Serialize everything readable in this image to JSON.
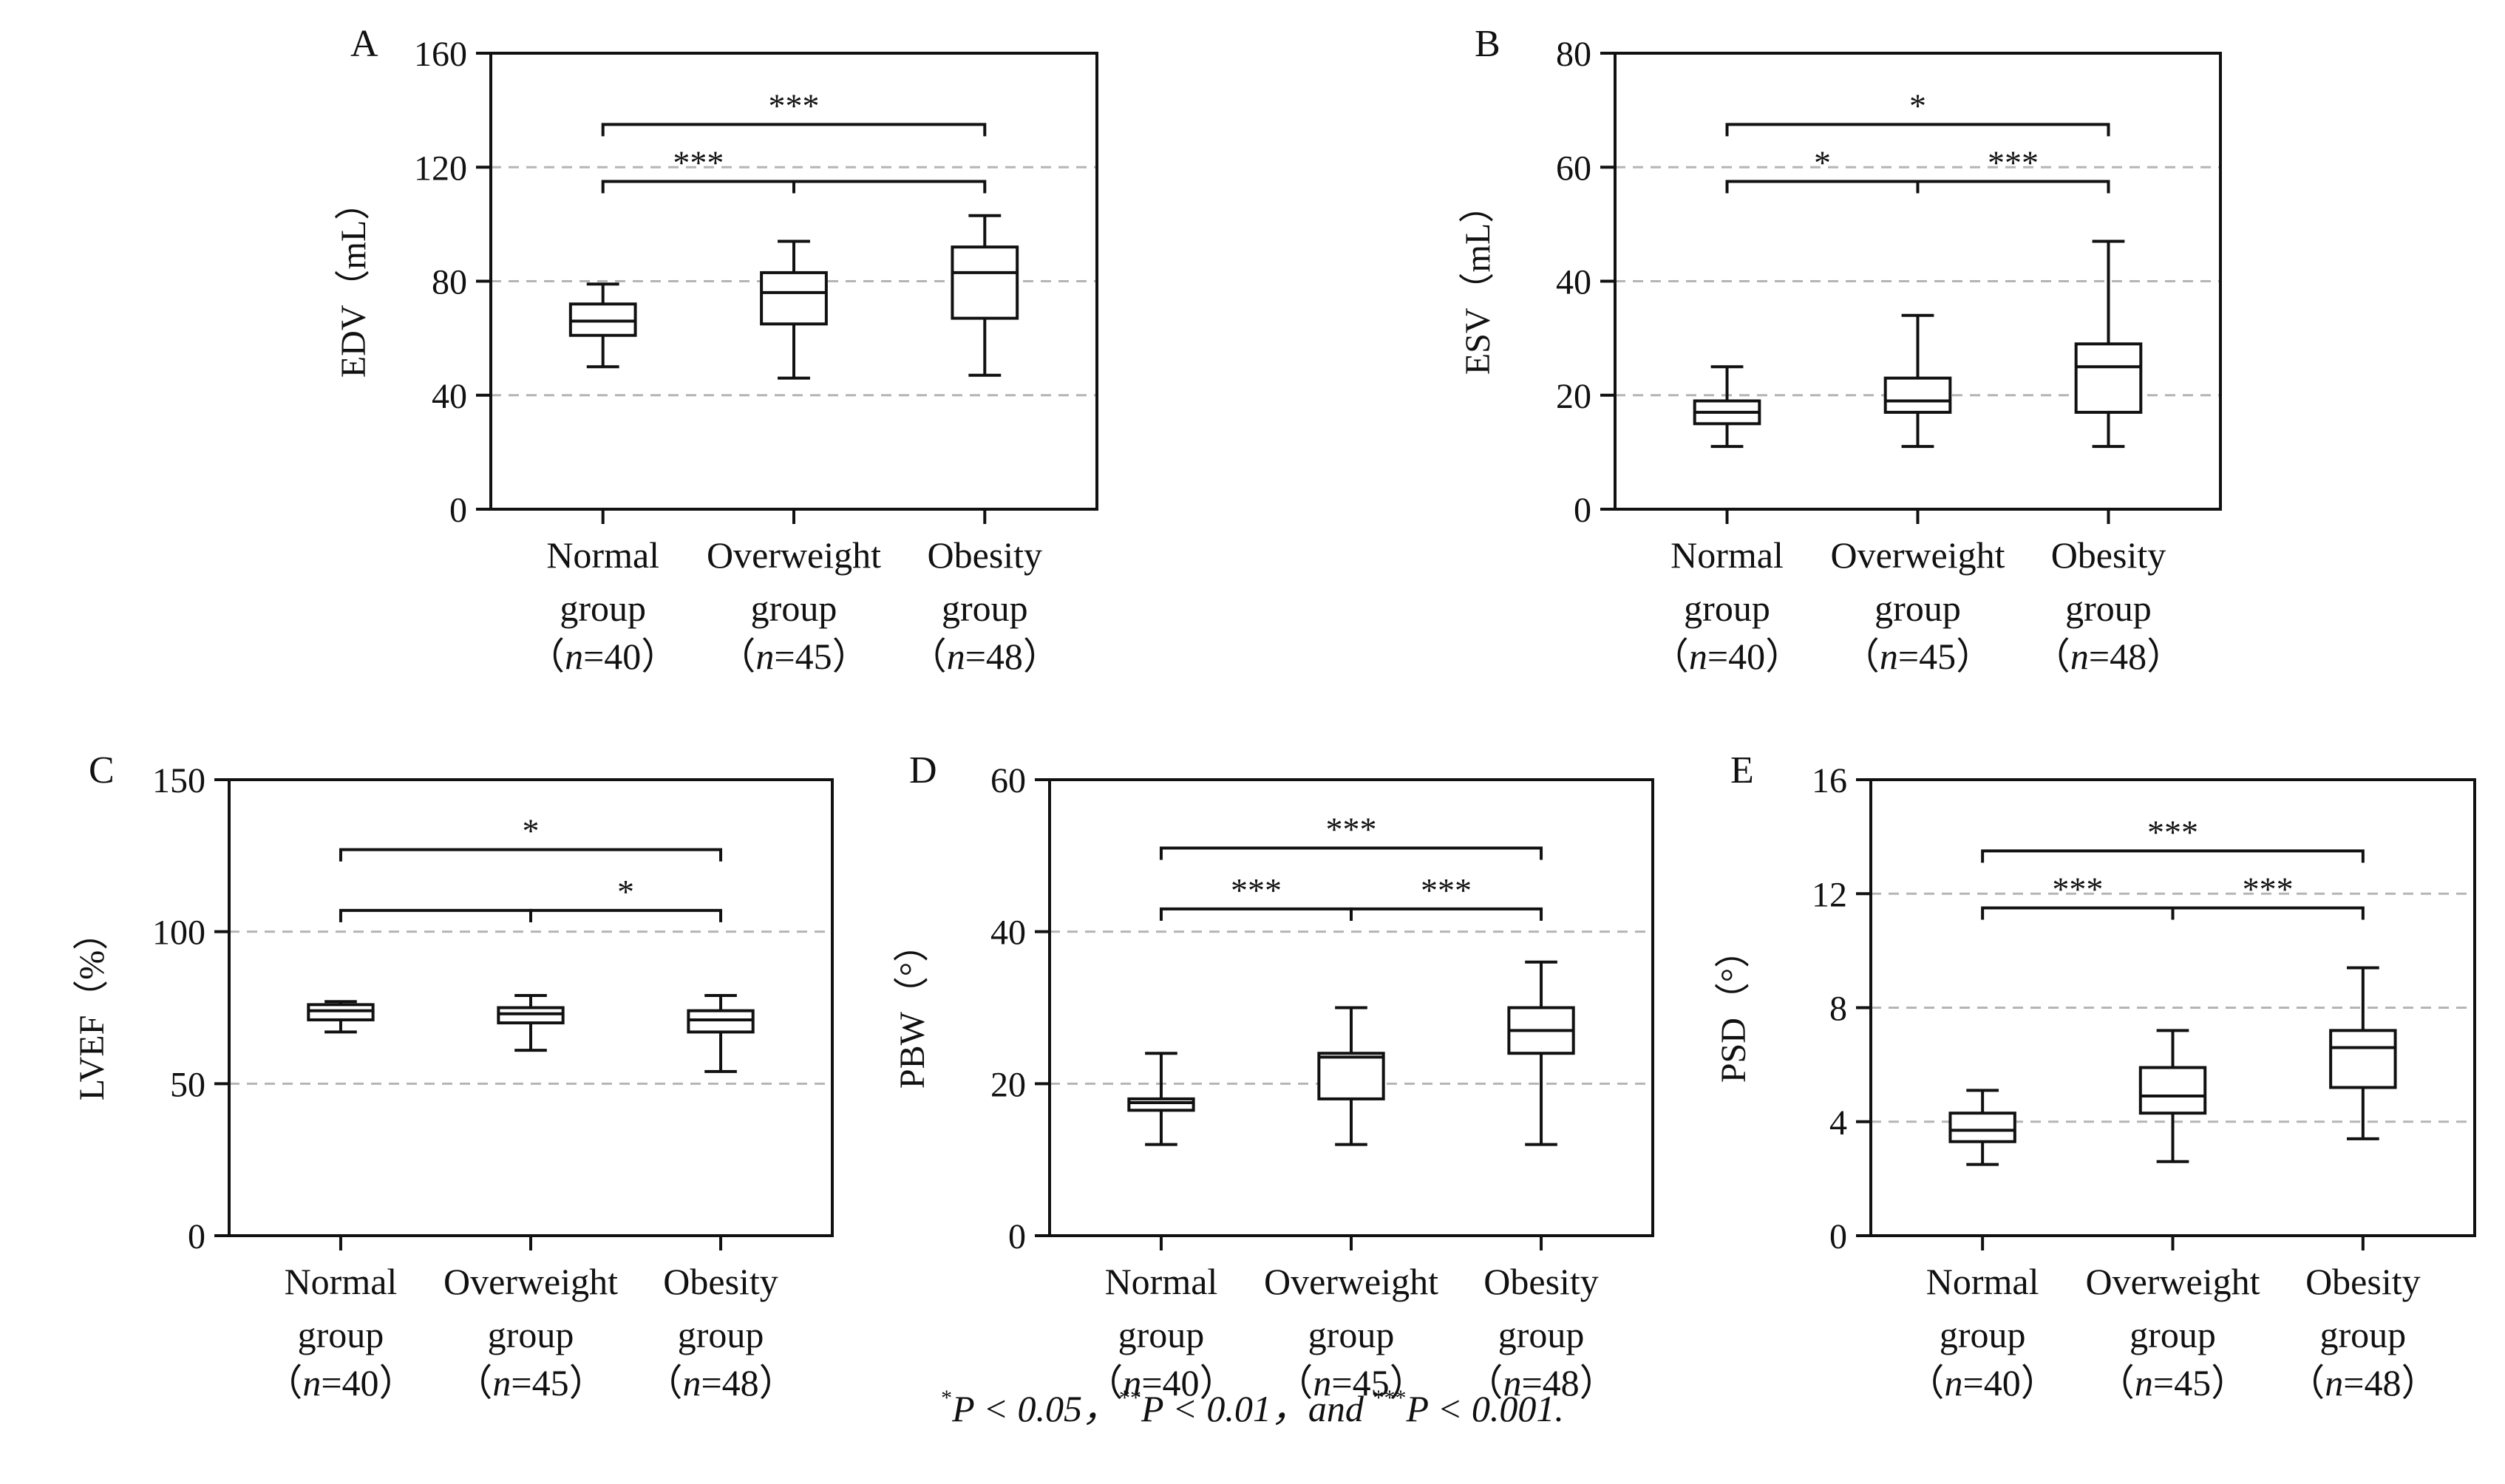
{
  "chart_data": [
    {
      "panel": "A",
      "type": "box",
      "ylabel": "EDV（mL）",
      "ylim": [
        0,
        160
      ],
      "yticks": [
        0,
        40,
        80,
        120,
        160
      ],
      "grid": [
        40,
        80,
        120
      ],
      "groups": [
        {
          "name": "Normal",
          "sub": "group",
          "n": "（n=40）",
          "n_value": "n=40",
          "min": 50,
          "q1": 61,
          "median": 66,
          "q3": 72,
          "max": 79
        },
        {
          "name": "Overweight",
          "sub": "group",
          "n": "（n=45）",
          "n_value": "n=45",
          "min": 46,
          "q1": 65,
          "median": 76,
          "q3": 83,
          "max": 94
        },
        {
          "name": "Obesity",
          "sub": "group",
          "n": "（n=48）",
          "n_value": "n=48",
          "min": 47,
          "q1": 67,
          "median": 83,
          "q3": 92,
          "max": 103
        }
      ],
      "significance": [
        {
          "from": 0,
          "to": 2,
          "level": 135,
          "label": "***",
          "label_at": "middle"
        },
        {
          "from": 0,
          "to": 1,
          "level": 115,
          "label": "***",
          "label_at": "middle"
        },
        {
          "from": 1,
          "to": 2,
          "level": 115,
          "label": "",
          "label_at": "middle"
        }
      ]
    },
    {
      "panel": "B",
      "type": "box",
      "ylabel": "ESV（mL）",
      "ylim": [
        0,
        80
      ],
      "yticks": [
        0,
        20,
        40,
        60,
        80
      ],
      "grid": [
        20,
        40,
        60
      ],
      "groups": [
        {
          "name": "Normal",
          "sub": "group",
          "n": "（n=40）",
          "n_value": "n=40",
          "min": 11,
          "q1": 15,
          "median": 17,
          "q3": 19,
          "max": 25
        },
        {
          "name": "Overweight",
          "sub": "group",
          "n": "（n=45）",
          "n_value": "n=45",
          "min": 11,
          "q1": 17,
          "median": 19,
          "q3": 23,
          "max": 34
        },
        {
          "name": "Obesity",
          "sub": "group",
          "n": "（n=48）",
          "n_value": "n=48",
          "min": 11,
          "q1": 17,
          "median": 25,
          "q3": 29,
          "max": 47
        }
      ],
      "significance": [
        {
          "from": 0,
          "to": 2,
          "level": 67.5,
          "label": "*",
          "label_at": "middle"
        },
        {
          "from": 0,
          "to": 1,
          "level": 57.5,
          "label": "*",
          "label_at": "middle"
        },
        {
          "from": 1,
          "to": 2,
          "level": 57.5,
          "label": "***",
          "label_at": "middle"
        }
      ]
    },
    {
      "panel": "C",
      "type": "box",
      "ylabel": "LVEF（%）",
      "ylim": [
        0,
        150
      ],
      "yticks": [
        0,
        50,
        100,
        150
      ],
      "grid": [
        50,
        100
      ],
      "groups": [
        {
          "name": "Normal",
          "sub": "group",
          "n": "（n=40）",
          "n_value": "n=40",
          "min": 67,
          "q1": 71,
          "median": 74,
          "q3": 76,
          "max": 77
        },
        {
          "name": "Overweight",
          "sub": "group",
          "n": "（n=45）",
          "n_value": "n=45",
          "min": 61,
          "q1": 70,
          "median": 73,
          "q3": 75,
          "max": 79
        },
        {
          "name": "Obesity",
          "sub": "group",
          "n": "（n=48）",
          "n_value": "n=48",
          "min": 54,
          "q1": 67,
          "median": 71,
          "q3": 74,
          "max": 79
        }
      ],
      "significance": [
        {
          "from": 0,
          "to": 2,
          "level": 127,
          "label": "*",
          "label_at": "middle"
        },
        {
          "from": 0,
          "to": 1,
          "level": 107,
          "label": "",
          "label_at": "middle"
        },
        {
          "from": 1,
          "to": 2,
          "level": 107,
          "label": "*",
          "label_at": "middle"
        }
      ]
    },
    {
      "panel": "D",
      "type": "box",
      "ylabel": "PBW（°）",
      "ylim": [
        0,
        60
      ],
      "yticks": [
        0,
        20,
        40,
        60
      ],
      "grid": [
        20,
        40
      ],
      "groups": [
        {
          "name": "Normal",
          "sub": "group",
          "n": "（n=40）",
          "n_value": "n=40",
          "min": 12,
          "q1": 16.5,
          "median": 17.5,
          "q3": 18,
          "max": 24
        },
        {
          "name": "Overweight",
          "sub": "group",
          "n": "（n=45）",
          "n_value": "n=45",
          "min": 12,
          "q1": 18,
          "median": 23.5,
          "q3": 24,
          "max": 30
        },
        {
          "name": "Obesity",
          "sub": "group",
          "n": "（n=48）",
          "n_value": "n=48",
          "min": 12,
          "q1": 24,
          "median": 27,
          "q3": 30,
          "max": 36
        }
      ],
      "significance": [
        {
          "from": 0,
          "to": 2,
          "level": 51,
          "label": "***",
          "label_at": "middle"
        },
        {
          "from": 0,
          "to": 1,
          "level": 43,
          "label": "***",
          "label_at": "middle"
        },
        {
          "from": 1,
          "to": 2,
          "level": 43,
          "label": "***",
          "label_at": "middle"
        }
      ]
    },
    {
      "panel": "E",
      "type": "box",
      "ylabel": "PSD（°）",
      "ylim": [
        0,
        16
      ],
      "yticks": [
        0,
        4,
        8,
        12,
        16
      ],
      "grid": [
        4,
        8,
        12
      ],
      "groups": [
        {
          "name": "Normal",
          "sub": "group",
          "n": "（n=40）",
          "n_value": "n=40",
          "min": 2.5,
          "q1": 3.3,
          "median": 3.7,
          "q3": 4.3,
          "max": 5.1
        },
        {
          "name": "Overweight",
          "sub": "group",
          "n": "（n=45）",
          "n_value": "n=45",
          "min": 2.6,
          "q1": 4.3,
          "median": 4.9,
          "q3": 5.9,
          "max": 7.2
        },
        {
          "name": "Obesity",
          "sub": "group",
          "n": "（n=48）",
          "n_value": "n=48",
          "min": 3.4,
          "q1": 5.2,
          "median": 6.6,
          "q3": 7.2,
          "max": 9.4
        }
      ],
      "significance": [
        {
          "from": 0,
          "to": 2,
          "level": 13.5,
          "label": "***",
          "label_at": "middle"
        },
        {
          "from": 0,
          "to": 1,
          "level": 11.5,
          "label": "***",
          "label_at": "middle"
        },
        {
          "from": 1,
          "to": 2,
          "level": 11.5,
          "label": "***",
          "label_at": "middle"
        }
      ]
    }
  ],
  "footnote": {
    "star1": "*",
    "p1": "P < 0.05，",
    "star2": "**",
    "p2": "P < 0.01，and ",
    "star3": "***",
    "p3": "P < 0.001."
  },
  "colors": {
    "axis": "#111111",
    "grid": "#b5b5b5",
    "box": "#111111"
  }
}
